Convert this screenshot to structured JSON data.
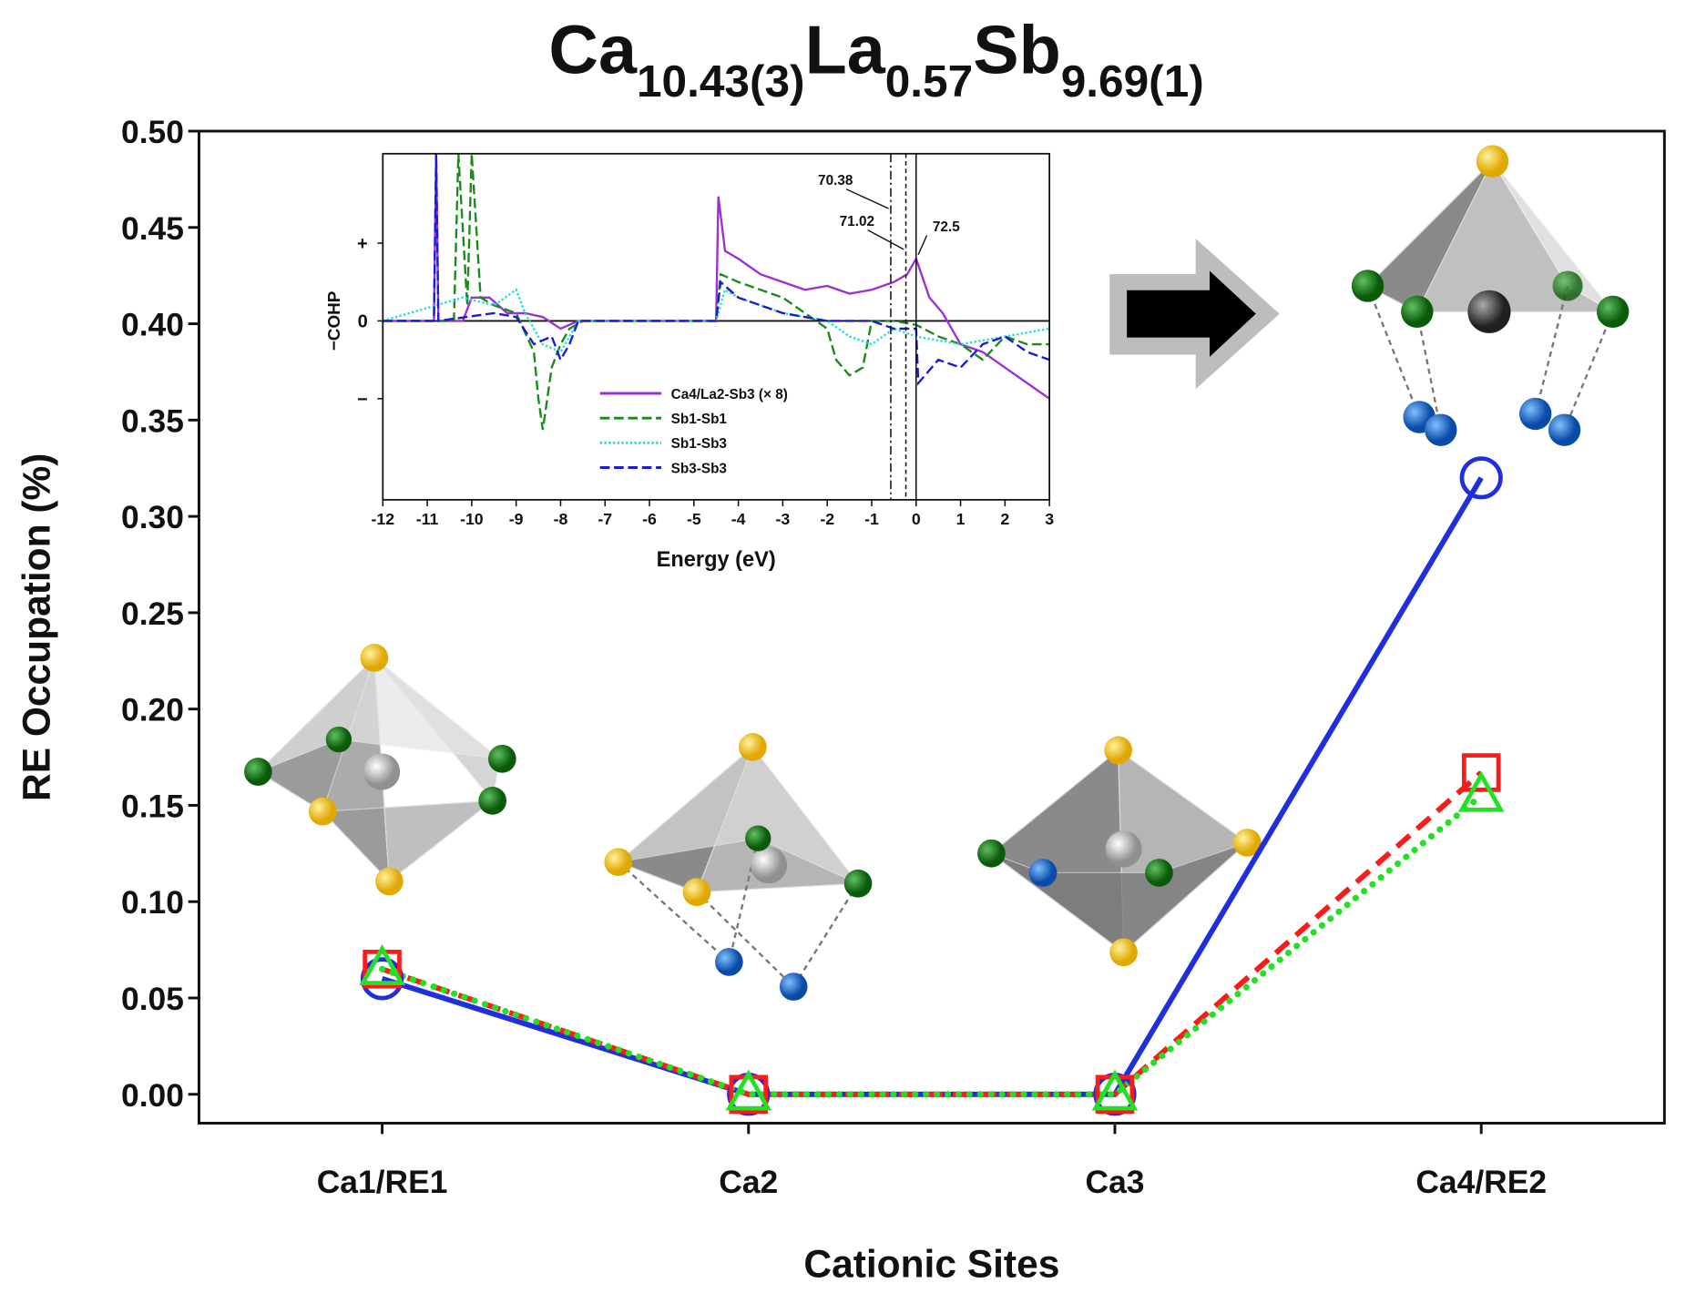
{
  "chart_data": [
    {
      "type": "line",
      "title": {
        "elements": [
          "Ca",
          "La",
          "Sb"
        ],
        "subscripts": [
          "10.43(3)",
          "0.57",
          "9.69(1)"
        ]
      },
      "xlabel": "Cationic Sites",
      "ylabel": "RE Occupation (%)",
      "categories": [
        "Ca1/RE1",
        "Ca2",
        "Ca3",
        "Ca4/RE2"
      ],
      "series": [
        {
          "color": "#1f2fe0",
          "marker": "circle",
          "linestyle": "solid",
          "values": [
            0.06,
            0,
            0,
            0.32
          ]
        },
        {
          "color": "#ff1a1a",
          "marker": "square",
          "linestyle": "dashed",
          "values": [
            0.065,
            0,
            0,
            0.167
          ]
        },
        {
          "color": "#22e022",
          "marker": "triangle",
          "linestyle": "dotted",
          "values": [
            0.065,
            0,
            0,
            0.155
          ]
        }
      ],
      "ylim": [
        -0.015,
        0.5
      ],
      "yticks": [
        {
          "value": 0,
          "label": "0.00"
        },
        {
          "value": 0.05,
          "label": "0.05"
        },
        {
          "value": 0.1,
          "label": "0.10"
        },
        {
          "value": 0.15,
          "label": "0.15"
        },
        {
          "value": 0.2,
          "label": "0.20"
        },
        {
          "value": 0.25,
          "label": "0.25"
        },
        {
          "value": 0.3,
          "label": "0.30"
        },
        {
          "value": 0.35,
          "label": "0.35"
        },
        {
          "value": 0.4,
          "label": "0.40"
        },
        {
          "value": 0.45,
          "label": "0.45"
        },
        {
          "value": 0.5,
          "label": "0.50"
        }
      ],
      "grid": false
    },
    {
      "type": "line",
      "xlabel": "Energy (eV)",
      "ylabel": "−COHP",
      "xlim": [
        -12,
        3
      ],
      "xticks": [
        -12,
        -11,
        -10,
        -9,
        -8,
        -7,
        -6,
        -5,
        -4,
        -3,
        -2,
        -1,
        0,
        1,
        2,
        3
      ],
      "ylim": [
        -2.3,
        2.15
      ],
      "yticks": [
        {
          "value": 1,
          "label": "+"
        },
        0,
        {
          "value": -1,
          "label": "−"
        }
      ],
      "legend": "lower-center",
      "annotations": [
        {
          "text": "70.38",
          "x": -0.57,
          "linestyle": "dashdot"
        },
        {
          "text": "71.02",
          "x": -0.23,
          "linestyle": "dashed"
        },
        {
          "text": "72.5",
          "x": 0,
          "linestyle": "solid"
        }
      ],
      "series": [
        {
          "name": "Ca4/La2-Sb3 (× 8)",
          "color": "#9b30d9",
          "linestyle": "solid",
          "x": [
            -12,
            -10.85,
            -10.8,
            -10.75,
            -10.2,
            -10.0,
            -9.6,
            -9.2,
            -8.8,
            -8.4,
            -8.0,
            -7.6,
            -7.4,
            -4.5,
            -4.45,
            -4.3,
            -4.0,
            -3.5,
            -3.0,
            -2.5,
            -2.0,
            -1.5,
            -1.0,
            -0.5,
            -0.2,
            0,
            0.3,
            0.6,
            1.0,
            1.5,
            2.0,
            2.5,
            3
          ],
          "values": [
            0,
            0,
            2.15,
            0,
            0,
            0.3,
            0.3,
            0.1,
            0.1,
            0.05,
            -0.1,
            0,
            0,
            0,
            1.6,
            0.9,
            0.8,
            0.6,
            0.5,
            0.4,
            0.45,
            0.35,
            0.4,
            0.5,
            0.6,
            0.8,
            0.3,
            0.1,
            -0.3,
            -0.4,
            -0.6,
            -0.8,
            -1.0
          ]
        },
        {
          "name": "Sb1-Sb1",
          "color": "#1a8a1a",
          "linestyle": "dashed",
          "x": [
            -12,
            -10.4,
            -10.3,
            -10.1,
            -10.0,
            -9.8,
            -9.5,
            -9.0,
            -8.6,
            -8.5,
            -8.4,
            -8.2,
            -8.0,
            -7.8,
            -7.5,
            -4.5,
            -4.4,
            -4.0,
            -3.5,
            -3.0,
            -2.5,
            -2.0,
            -1.8,
            -1.5,
            -1.2,
            -1.0,
            -0.5,
            0,
            0.5,
            1.0,
            1.5,
            2.0,
            2.5,
            3
          ],
          "values": [
            0,
            0,
            2.15,
            0.2,
            2.15,
            0.3,
            0.2,
            0.1,
            -0.4,
            -1.0,
            -1.4,
            -0.6,
            -0.3,
            -0.1,
            0,
            0,
            0.6,
            0.5,
            0.4,
            0.3,
            0.1,
            -0.1,
            -0.5,
            -0.7,
            -0.6,
            0,
            0,
            -0.05,
            -0.2,
            -0.3,
            -0.5,
            -0.2,
            -0.3,
            -0.3
          ]
        },
        {
          "name": "Sb1-Sb3",
          "color": "#22dddd",
          "linestyle": "dotted",
          "x": [
            -12,
            -10.2,
            -9.5,
            -9.0,
            -8.8,
            -8.4,
            -8.0,
            -7.6,
            -4.5,
            -4.3,
            -4.0,
            -3.5,
            -3.0,
            -2.0,
            -1.5,
            -1.0,
            -0.5,
            0,
            1,
            2,
            3
          ],
          "values": [
            0,
            0.3,
            0.2,
            0.4,
            0.1,
            -0.3,
            -0.4,
            0,
            0,
            0.4,
            0.3,
            0.2,
            0.1,
            0,
            -0.2,
            -0.3,
            -0.1,
            -0.2,
            -0.3,
            -0.2,
            -0.1
          ]
        },
        {
          "name": "Sb3-Sb3",
          "color": "#1a1ad9",
          "linestyle": "dashed",
          "x": [
            -12,
            -10.85,
            -10.8,
            -10.75,
            -9.5,
            -9.0,
            -8.6,
            -8.2,
            -8.0,
            -7.8,
            -7.6,
            -4.5,
            -4.4,
            -4.0,
            -3.5,
            -3.0,
            -2.0,
            -1.0,
            -0.5,
            0,
            0.05,
            0.5,
            1.0,
            1.5,
            2.0,
            2.5,
            3
          ],
          "values": [
            0,
            0,
            2.15,
            0,
            0.1,
            0.05,
            -0.3,
            -0.2,
            -0.5,
            -0.3,
            0,
            0,
            0.5,
            0.3,
            0.2,
            0.1,
            0,
            0,
            -0.1,
            -0.1,
            -0.8,
            -0.5,
            -0.6,
            -0.3,
            -0.2,
            -0.4,
            -0.5
          ]
        }
      ]
    }
  ]
}
